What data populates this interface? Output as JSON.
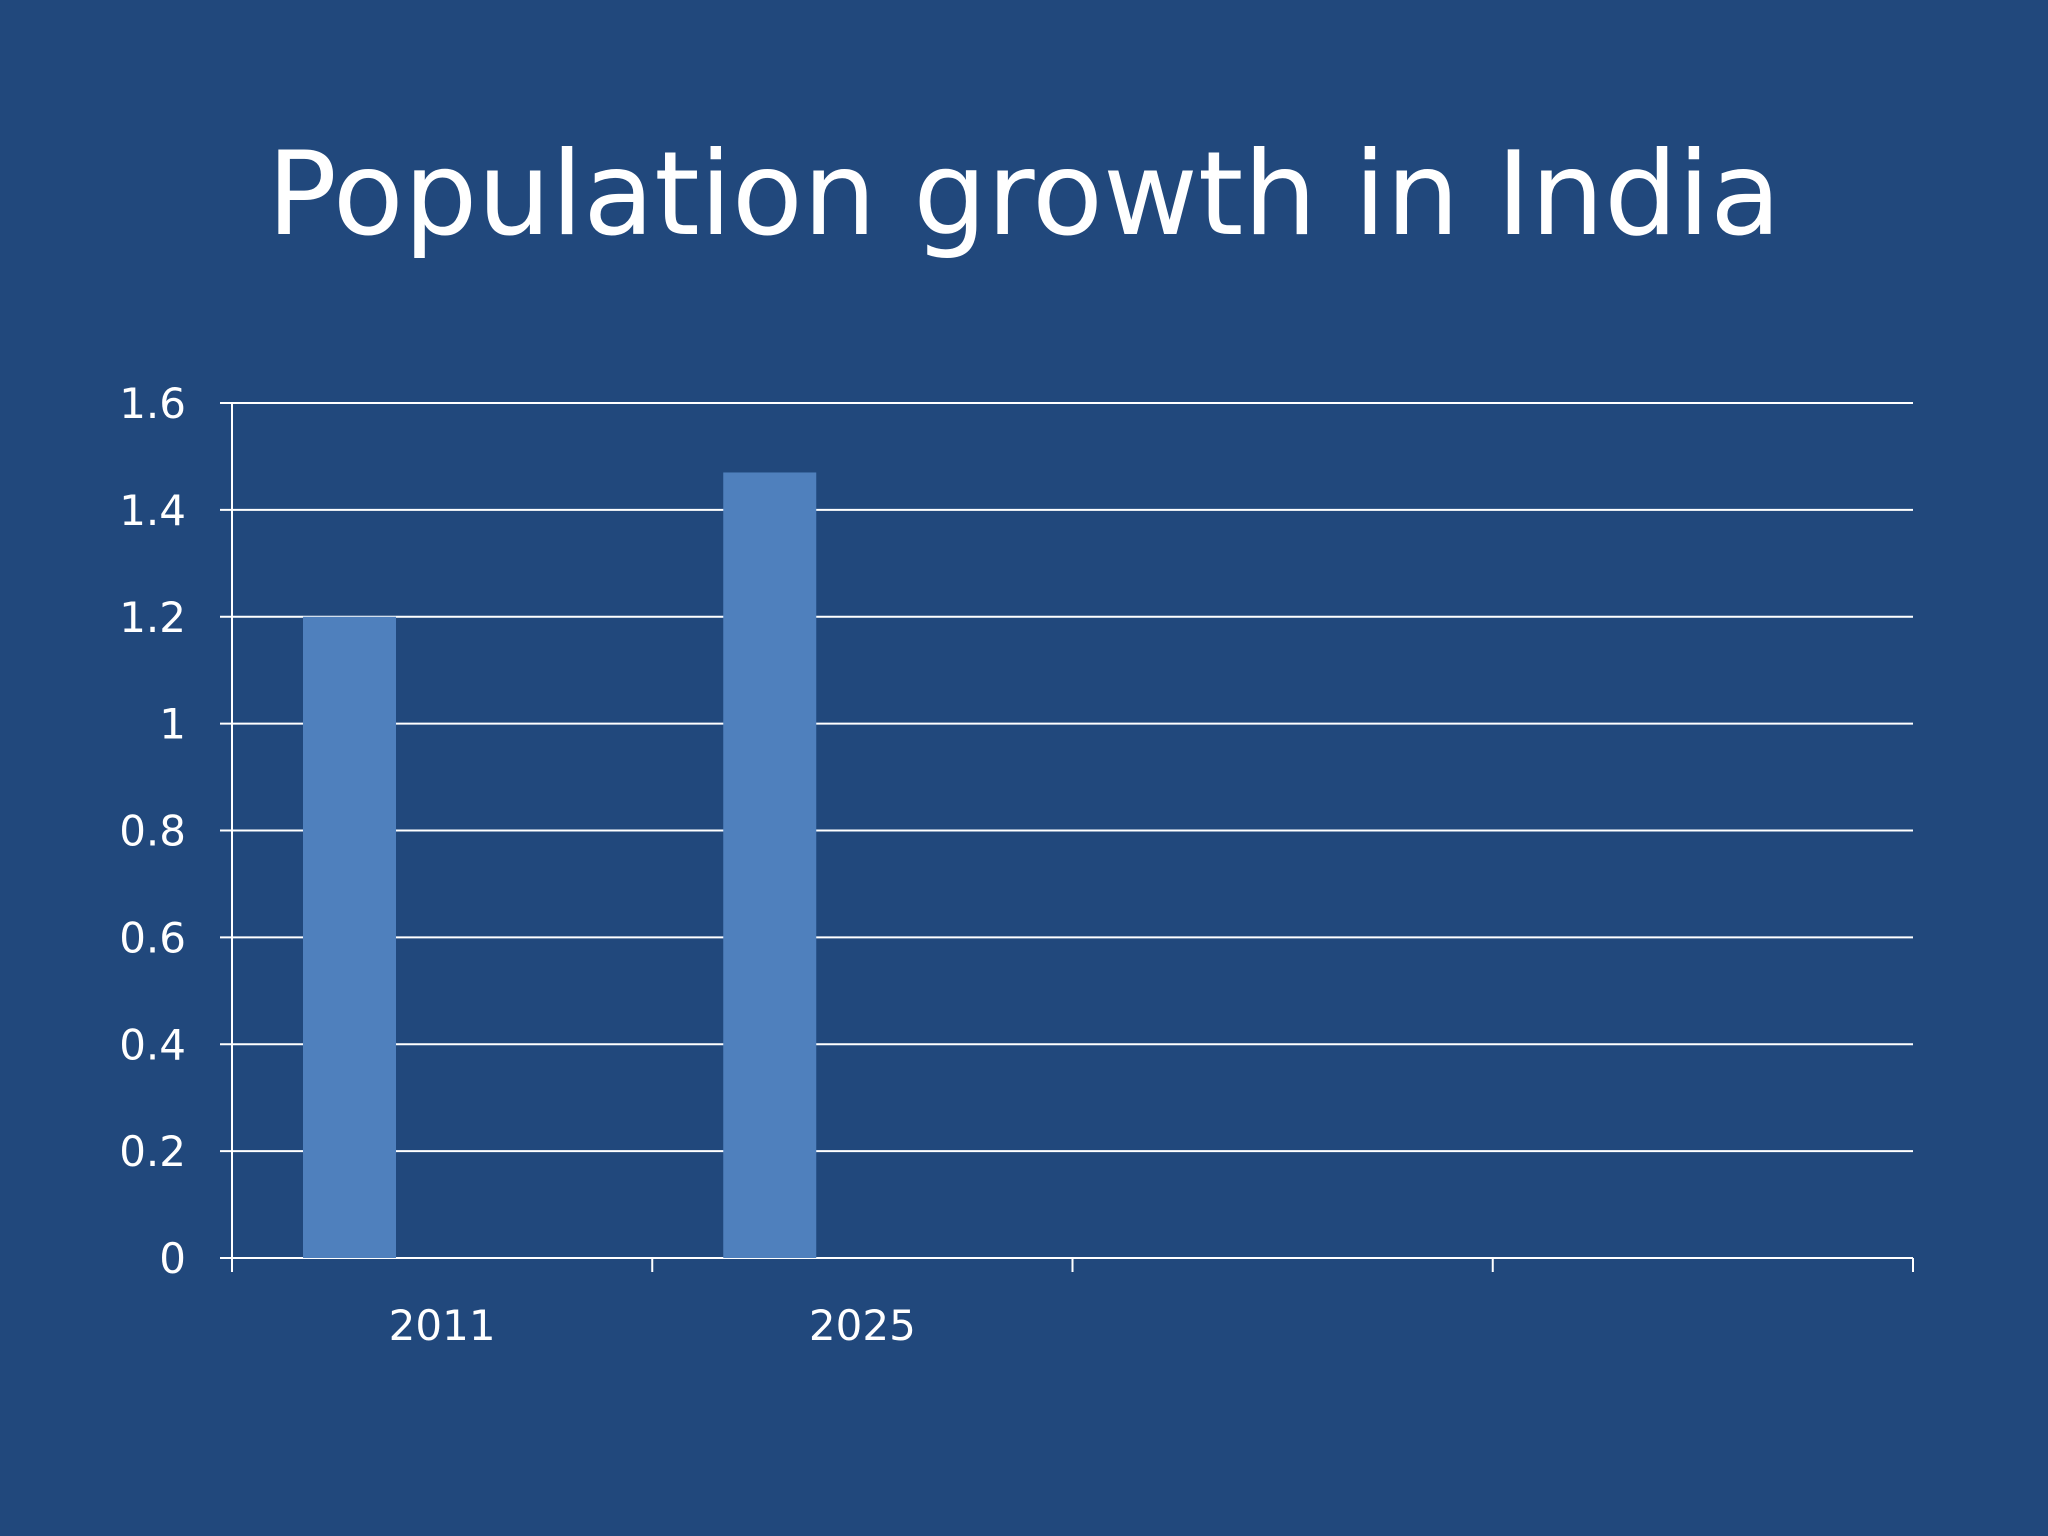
{
  "slide": {
    "title": "Population growth in India"
  },
  "colors": {
    "background": "#21487c",
    "bar": "#4f80bd",
    "gridline": "#ffffff",
    "text": "#ffffff"
  },
  "chart_data": {
    "type": "bar",
    "title": "Population growth in India",
    "categories": [
      "2011",
      "2025",
      "",
      ""
    ],
    "values": [
      1.2,
      1.47,
      null,
      null
    ],
    "ylim": [
      0,
      1.6
    ],
    "yticks": [
      0,
      0.2,
      0.4,
      0.6,
      0.8,
      1,
      1.2,
      1.4,
      1.6
    ],
    "ytick_labels": [
      "0",
      "0.2",
      "0.4",
      "0.6",
      "0.8",
      "1",
      "1.2",
      "1.4",
      "1.6"
    ],
    "grid": true,
    "legend": "none"
  }
}
